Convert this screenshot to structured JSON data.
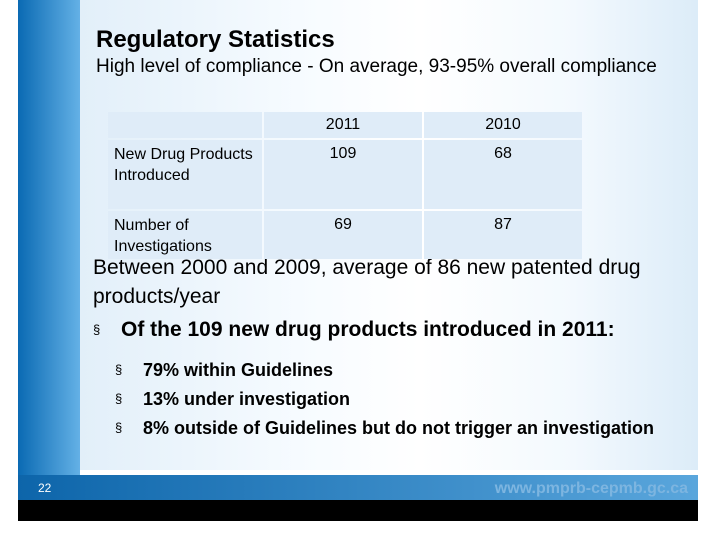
{
  "title": "Regulatory Statistics",
  "subtitle": "High level of compliance - On average, 93-95% overall compliance",
  "table": {
    "headers": [
      "",
      "2011",
      "2010"
    ],
    "rows": [
      {
        "label": "New Drug Products Introduced",
        "values": [
          "109",
          "68"
        ]
      },
      {
        "label": "Number of Investigations",
        "values": [
          "69",
          "87"
        ]
      }
    ]
  },
  "body": {
    "paragraph": "Between 2000 and 2009, average of 86 new patented drug products/year",
    "bullet_glyph": "§",
    "level1": "Of the 109 new drug products introduced in 2011:",
    "level2": [
      "79% within Guidelines",
      "13% under investigation",
      "8% outside of Guidelines but do not trigger an investigation"
    ]
  },
  "footer": {
    "page_number": "22",
    "url": "www.pmprb-cepmb.gc.ca"
  },
  "colors": {
    "band_blue": "#0a6ab3",
    "table_cell": "#dfecf8",
    "footer_url": "#7db5e0"
  }
}
